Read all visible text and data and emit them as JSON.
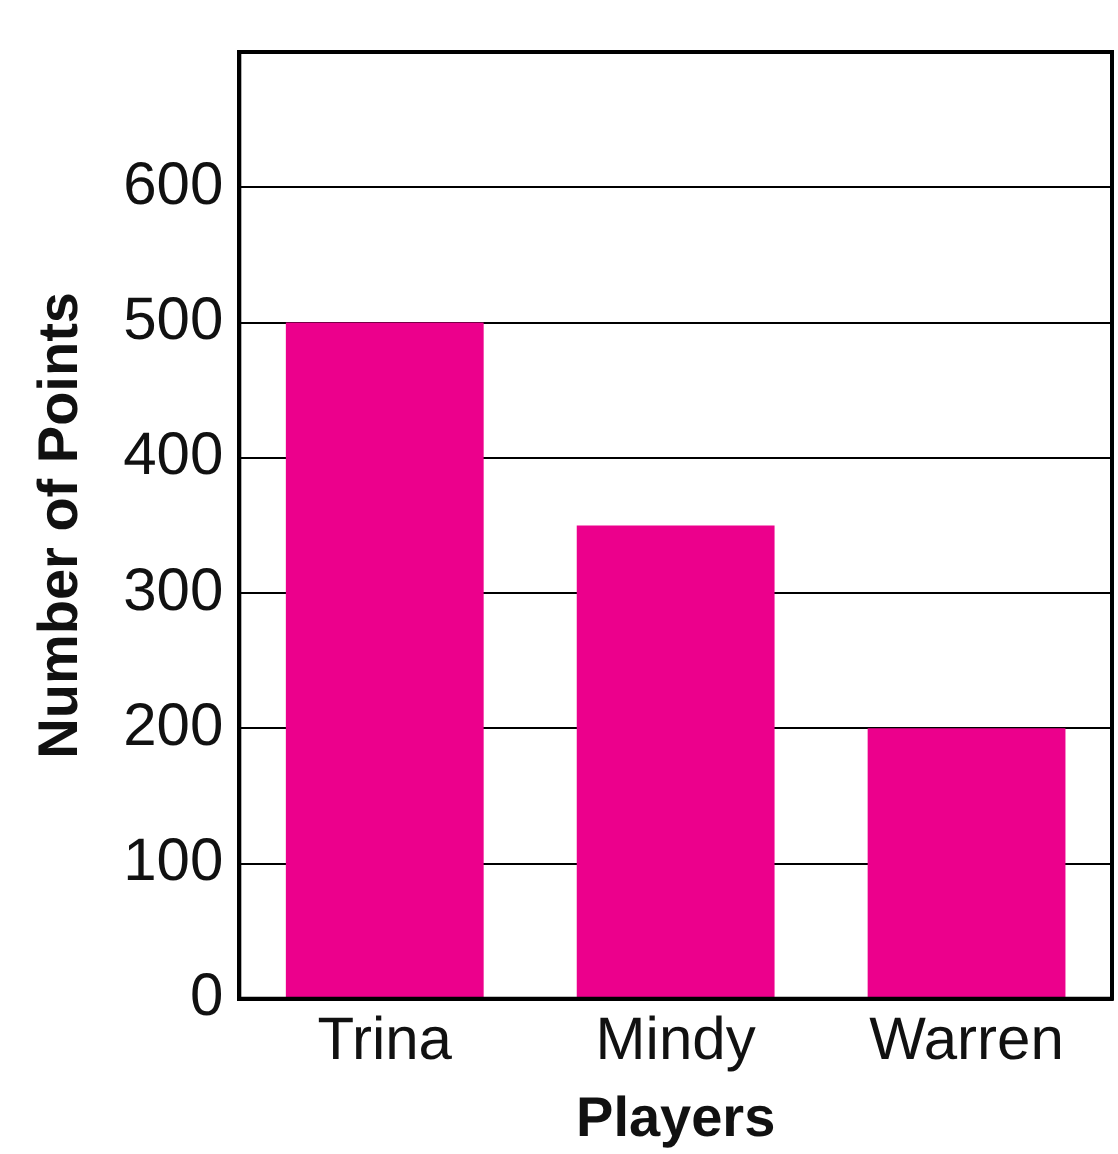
{
  "chart_data": {
    "type": "bar",
    "xlabel": "Players",
    "ylabel": "Number of Points",
    "categories": [
      "Trina",
      "Mindy",
      "Warren"
    ],
    "values": [
      500,
      350,
      200
    ],
    "color": "#ec008c",
    "ylim": [
      0,
      700
    ],
    "yticks": [
      0,
      100,
      200,
      300,
      400,
      500,
      600
    ],
    "grid": "y",
    "legend": false
  }
}
